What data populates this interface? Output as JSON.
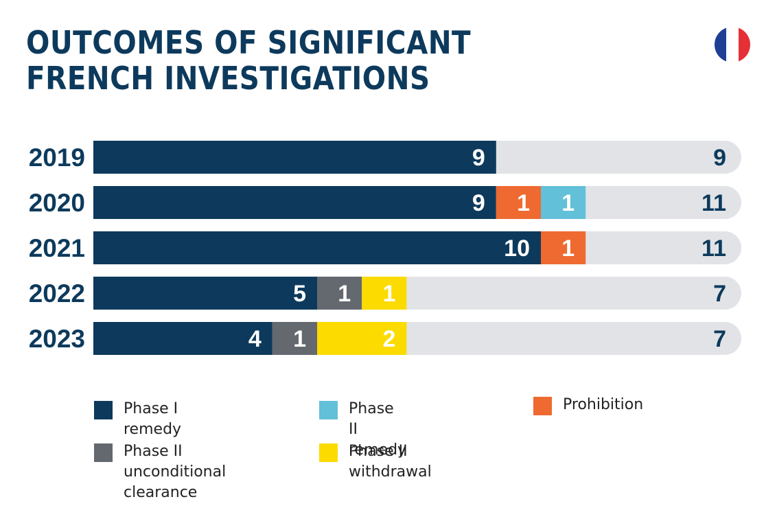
{
  "title_lines": [
    "OUTCOMES OF SIGNIFICANT",
    "FRENCH INVESTIGATIONS"
  ],
  "icon": "france-flag-icon",
  "colors": {
    "title": "#0d3a5c",
    "track": "#e1e3e6",
    "phase1_remedy": "#0d3a5c",
    "phase2_remedy": "#62c0d8",
    "prohibition": "#ee6a31",
    "phase2_unconditional": "#64686f",
    "phase2_withdrawal": "#fbdb00",
    "flag_blue": "#1f3f94",
    "flag_red": "#e53037"
  },
  "chart_data": {
    "type": "bar",
    "orientation": "horizontal",
    "stacked": true,
    "categories": [
      "2019",
      "2020",
      "2021",
      "2022",
      "2023"
    ],
    "xlim": [
      0,
      14.4
    ],
    "series": [
      {
        "name": "Phase I remedy",
        "color": "#0d3a5c",
        "values": [
          9,
          9,
          10,
          5,
          4
        ]
      },
      {
        "name": "Prohibition",
        "color": "#ee6a31",
        "values": [
          0,
          1,
          1,
          0,
          0
        ]
      },
      {
        "name": "Phase II remedy",
        "color": "#62c0d8",
        "values": [
          0,
          1,
          0,
          0,
          0
        ]
      },
      {
        "name": "Phase II unconditional clearance",
        "color": "#64686f",
        "values": [
          0,
          0,
          0,
          1,
          1
        ]
      },
      {
        "name": "Phase II withdrawal",
        "color": "#fbdb00",
        "values": [
          0,
          0,
          0,
          1,
          2
        ]
      }
    ],
    "totals": [
      9,
      11,
      11,
      7,
      7
    ]
  },
  "legend": [
    {
      "label": "Phase I remedy",
      "color": "#0d3a5c"
    },
    {
      "label": "Phase II remedy",
      "color": "#62c0d8"
    },
    {
      "label": "Prohibition",
      "color": "#ee6a31"
    },
    {
      "label": "Phase II unconditional\nclearance",
      "color": "#64686f"
    },
    {
      "label": "Phase II withdrawal",
      "color": "#fbdb00"
    }
  ]
}
